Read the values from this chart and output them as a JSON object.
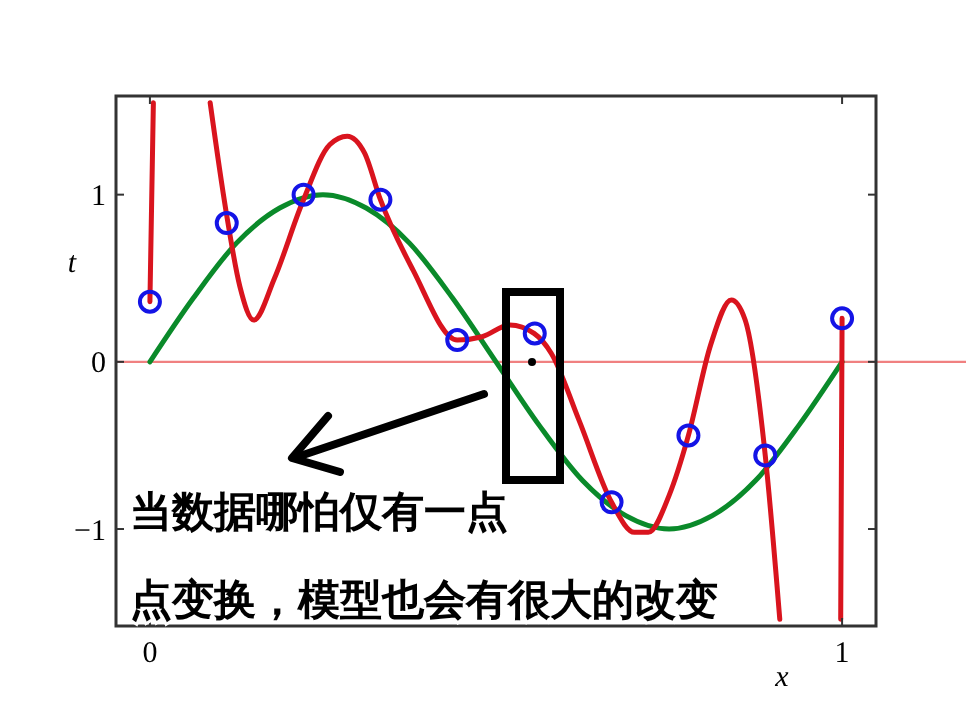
{
  "chart_data": {
    "type": "line",
    "xlabel": "x",
    "ylabel": "t",
    "xlim": [
      -0.049,
      1.049
    ],
    "ylim": [
      -1.58,
      1.59
    ],
    "xticks": [
      0,
      1
    ],
    "yticks": [
      {
        "value": -1,
        "label": "−1"
      },
      0,
      1
    ],
    "series": [
      {
        "type": "line",
        "color": "#0a8a2a",
        "x": [
          0,
          0.0625,
          0.125,
          0.1875,
          0.25,
          0.3125,
          0.375,
          0.4375,
          0.5,
          0.5625,
          0.625,
          0.6875,
          0.75,
          0.8125,
          0.875,
          0.9375,
          1
        ],
        "values": [
          0,
          0.38,
          0.71,
          0.92,
          1,
          0.92,
          0.71,
          0.38,
          0,
          -0.38,
          -0.71,
          -0.92,
          -1,
          -0.92,
          -0.71,
          -0.38,
          0
        ]
      },
      {
        "type": "line",
        "color": "#d9141e",
        "x": [
          0,
          0.005,
          0.04,
          0.087,
          0.11,
          0.13,
          0.15,
          0.18,
          0.22,
          0.26,
          0.285,
          0.31,
          0.333,
          0.38,
          0.444,
          0.48,
          0.52,
          0.555,
          0.58,
          0.62,
          0.667,
          0.7,
          0.72,
          0.75,
          0.778,
          0.81,
          0.84,
          0.86,
          0.889,
          0.91,
          0.95,
          0.998,
          1
        ],
        "values": [
          0.36,
          1.55,
          null,
          1.55,
          0.9,
          0.45,
          0.25,
          0.5,
          0.95,
          1.3,
          1.35,
          1.25,
          0.97,
          0.55,
          0.13,
          0.15,
          0.22,
          0.17,
          0.05,
          -0.35,
          -0.84,
          -1.02,
          -1.02,
          -0.8,
          -0.44,
          0.1,
          0.37,
          0.25,
          -0.56,
          -1.54,
          null,
          -1.54,
          0.26
        ]
      },
      {
        "type": "scatter",
        "color": "#1414e6",
        "marker": "circle",
        "x": [
          0,
          0.111,
          0.222,
          0.333,
          0.444,
          0.556,
          0.667,
          0.778,
          0.889,
          1
        ],
        "values": [
          0.36,
          0.83,
          1.0,
          0.97,
          0.13,
          0.17,
          -0.84,
          -0.44,
          -0.56,
          0.26
        ]
      }
    ],
    "ref_lines": [
      {
        "axis": "y",
        "value": 0,
        "color": "#f08080"
      }
    ],
    "annotations": [
      "当数据哪怕仅有一点",
      "点变换，模型也会有很大的改变"
    ]
  }
}
